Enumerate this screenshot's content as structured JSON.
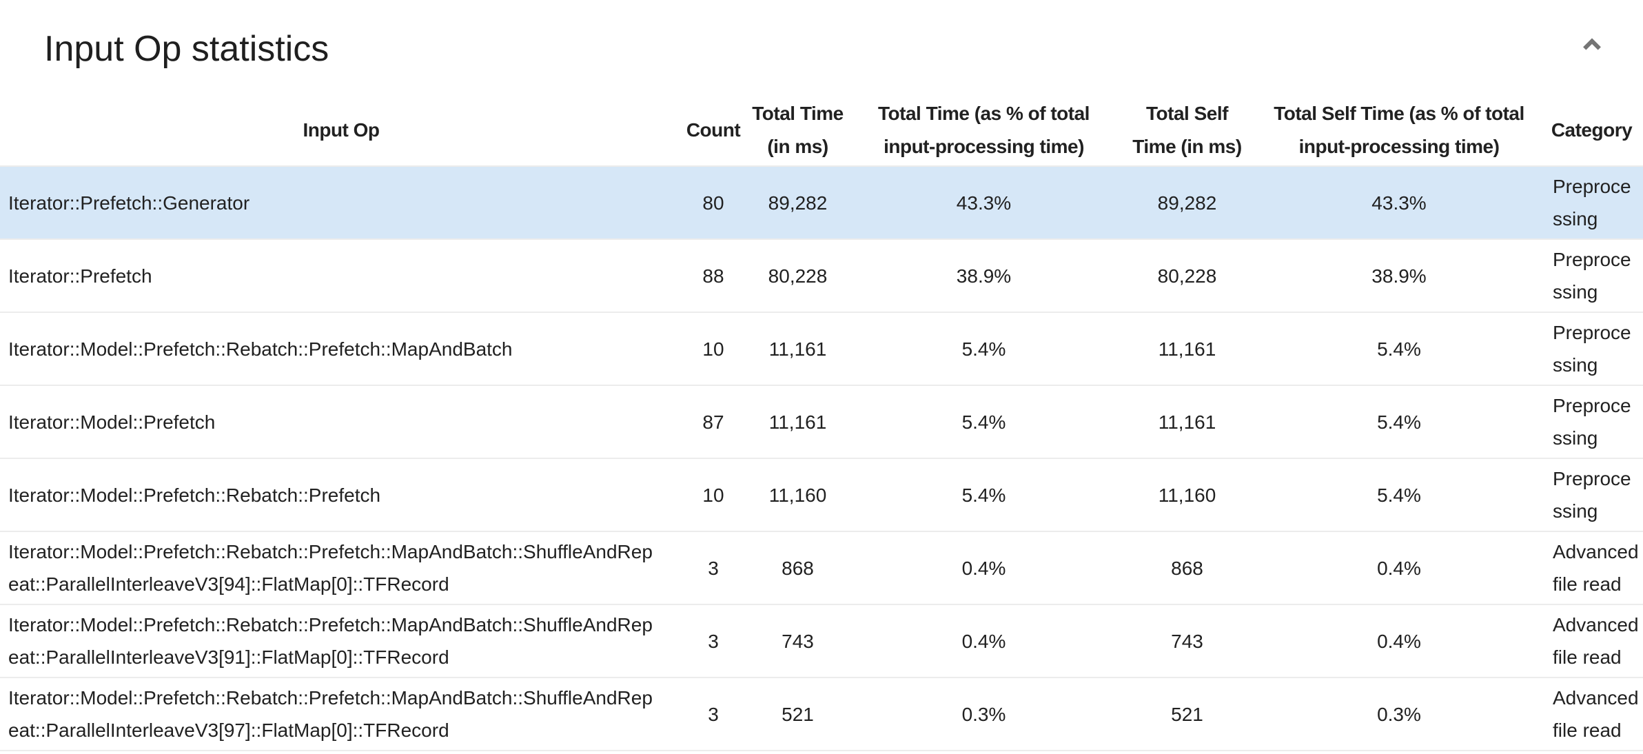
{
  "title": "Input Op statistics",
  "collapse_icon": "chevron-up",
  "colors": {
    "selected_row_background": "#d6e7f7",
    "row_divider": "#ececec",
    "text": "#212121",
    "chevron": "#757575"
  },
  "table": {
    "columns": [
      {
        "id": "input_op",
        "label": "Input Op"
      },
      {
        "id": "count",
        "label": "Count"
      },
      {
        "id": "total_time_ms",
        "label": "Total Time\n(in ms)"
      },
      {
        "id": "total_time_pct",
        "label": "Total Time (as % of total\ninput-processing time)"
      },
      {
        "id": "total_self_time_ms",
        "label": "Total Self\nTime (in ms)"
      },
      {
        "id": "total_self_time_pct",
        "label": "Total Self Time (as % of total\ninput-processing time)"
      },
      {
        "id": "category",
        "label": "Category"
      }
    ],
    "rows": [
      {
        "selected": true,
        "input_op": "Iterator::Prefetch::Generator",
        "count": "80",
        "total_time_ms": "89,282",
        "total_time_pct": "43.3%",
        "total_self_time_ms": "89,282",
        "total_self_time_pct": "43.3%",
        "category": "Preprocessing"
      },
      {
        "selected": false,
        "input_op": "Iterator::Prefetch",
        "count": "88",
        "total_time_ms": "80,228",
        "total_time_pct": "38.9%",
        "total_self_time_ms": "80,228",
        "total_self_time_pct": "38.9%",
        "category": "Preprocessing"
      },
      {
        "selected": false,
        "input_op": "Iterator::Model::Prefetch::Rebatch::Prefetch::MapAndBatch",
        "count": "10",
        "total_time_ms": "11,161",
        "total_time_pct": "5.4%",
        "total_self_time_ms": "11,161",
        "total_self_time_pct": "5.4%",
        "category": "Preprocessing"
      },
      {
        "selected": false,
        "input_op": "Iterator::Model::Prefetch",
        "count": "87",
        "total_time_ms": "11,161",
        "total_time_pct": "5.4%",
        "total_self_time_ms": "11,161",
        "total_self_time_pct": "5.4%",
        "category": "Preprocessing"
      },
      {
        "selected": false,
        "input_op": "Iterator::Model::Prefetch::Rebatch::Prefetch",
        "count": "10",
        "total_time_ms": "11,160",
        "total_time_pct": "5.4%",
        "total_self_time_ms": "11,160",
        "total_self_time_pct": "5.4%",
        "category": "Preprocessing"
      },
      {
        "selected": false,
        "input_op": "Iterator::Model::Prefetch::Rebatch::Prefetch::MapAndBatch::ShuffleAndRepeat::ParallelInterleaveV3[94]::FlatMap[0]::TFRecord",
        "count": "3",
        "total_time_ms": "868",
        "total_time_pct": "0.4%",
        "total_self_time_ms": "868",
        "total_self_time_pct": "0.4%",
        "category": "Advanced file read"
      },
      {
        "selected": false,
        "input_op": "Iterator::Model::Prefetch::Rebatch::Prefetch::MapAndBatch::ShuffleAndRepeat::ParallelInterleaveV3[91]::FlatMap[0]::TFRecord",
        "count": "3",
        "total_time_ms": "743",
        "total_time_pct": "0.4%",
        "total_self_time_ms": "743",
        "total_self_time_pct": "0.4%",
        "category": "Advanced file read"
      },
      {
        "selected": false,
        "input_op": "Iterator::Model::Prefetch::Rebatch::Prefetch::MapAndBatch::ShuffleAndRepeat::ParallelInterleaveV3[97]::FlatMap[0]::TFRecord",
        "count": "3",
        "total_time_ms": "521",
        "total_time_pct": "0.3%",
        "total_self_time_ms": "521",
        "total_self_time_pct": "0.3%",
        "category": "Advanced file read"
      }
    ]
  }
}
